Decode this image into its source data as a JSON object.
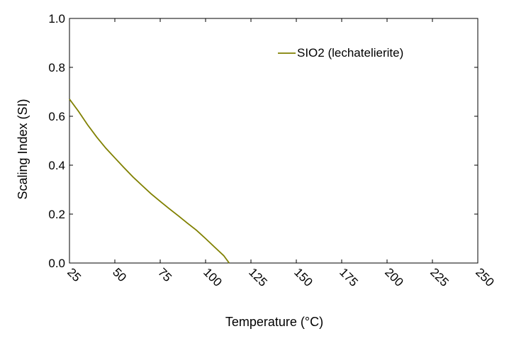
{
  "chart_data": {
    "type": "line",
    "title": "",
    "xlabel": "Temperature (°C)",
    "ylabel": "Scaling Index (SI)",
    "xlim": [
      25,
      250
    ],
    "ylim": [
      0,
      1.0
    ],
    "x_ticks": [
      25,
      50,
      75,
      100,
      125,
      150,
      175,
      200,
      225,
      250
    ],
    "x_tick_labels": [
      "25",
      "50",
      "75",
      "100",
      "125",
      "150",
      "175",
      "200",
      "225",
      "250"
    ],
    "y_ticks": [
      0,
      0.2,
      0.4,
      0.6,
      0.8,
      1.0
    ],
    "y_tick_labels": [
      "0.0",
      "0.2",
      "0.4",
      "0.6",
      "0.8",
      "1.0"
    ],
    "grid": false,
    "legend_position": "top-right",
    "series": [
      {
        "name": "SIO2 (lechatelierite)",
        "color": "#808000",
        "x": [
          25,
          30,
          35,
          40,
          45,
          50,
          55,
          60,
          65,
          70,
          75,
          80,
          85,
          90,
          95,
          100,
          105,
          110,
          113
        ],
        "y": [
          0.67,
          0.62,
          0.565,
          0.515,
          0.47,
          0.43,
          0.39,
          0.352,
          0.317,
          0.283,
          0.252,
          0.222,
          0.193,
          0.163,
          0.134,
          0.1,
          0.065,
          0.03,
          0.0
        ]
      }
    ]
  }
}
